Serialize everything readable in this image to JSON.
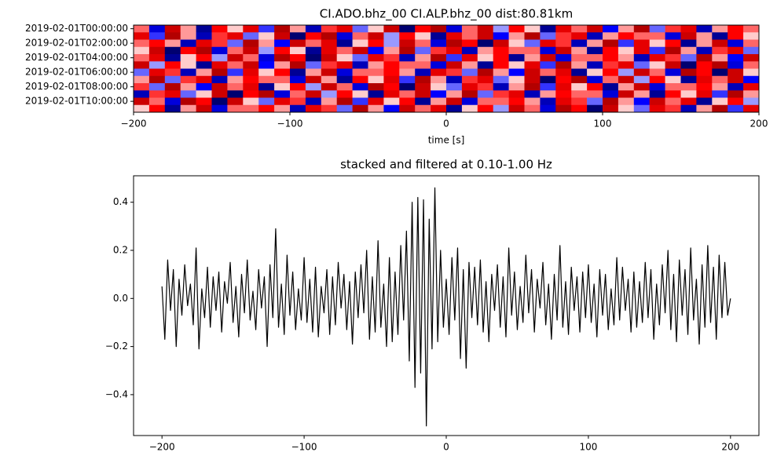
{
  "chart_data": [
    {
      "type": "heatmap",
      "title": "CI.ADO.bhz_00 CI.ALP.bhz_00  dist:80.81km",
      "xlabel": "time [s]",
      "colormap": "seismic",
      "clim": [
        -1,
        1
      ],
      "xlim": [
        -200,
        200
      ],
      "xticks": [
        {
          "value": -200,
          "label": "−200"
        },
        {
          "value": -100,
          "label": "−100"
        },
        0,
        100,
        200
      ],
      "y_categories": [
        "2019-02-01T00:00:00",
        null,
        "2019-02-01T02:00:00",
        null,
        "2019-02-01T04:00:00",
        null,
        "2019-02-01T06:00:00",
        null,
        "2019-02-01T08:00:00",
        null,
        "2019-02-01T10:00:00",
        null
      ],
      "matrix": [
        [
          0.3,
          -0.6,
          0.7,
          0.2,
          -0.8,
          0.5,
          0.1,
          0.6,
          -0.4,
          0.8,
          0.2,
          -0.7,
          0.4,
          0.6,
          -0.3,
          0.1,
          0.7,
          -0.9,
          0.5,
          0.8,
          -0.6,
          0.3,
          0.7,
          -0.2,
          0.5,
          0.1,
          -0.8,
          0.6,
          0.3,
          0.7,
          -0.5,
          0.2,
          0.8,
          -0.3,
          0.4,
          0.6,
          -0.7,
          0.2,
          0.5,
          0.3
        ],
        [
          0.6,
          -0.4,
          0.8,
          0.2,
          -0.7,
          0.4,
          0.6,
          -0.3,
          0.1,
          0.7,
          -0.9,
          0.5,
          0.8,
          -0.6,
          0.3,
          0.7,
          -0.2,
          0.5,
          0.1,
          -0.8,
          0.6,
          0.3,
          0.7,
          -0.5,
          0.2,
          0.8,
          -0.3,
          0.4,
          0.6,
          -0.7,
          0.2,
          0.5,
          0.3,
          0.3,
          -0.6,
          0.7,
          0.2,
          -0.8,
          0.5,
          0.1
        ],
        [
          0.3,
          0.5,
          0.2,
          -0.7,
          0.6,
          0.4,
          -0.3,
          0.8,
          0.2,
          -0.5,
          0.7,
          0.3,
          0.6,
          -0.8,
          0.1,
          0.5,
          -0.2,
          0.7,
          0.3,
          -0.6,
          0.8,
          0.5,
          -0.9,
          0.7,
          0.1,
          -0.3,
          0.6,
          0.4,
          -0.7,
          0.2,
          0.8,
          -0.4,
          0.6,
          0.1,
          0.5,
          -0.8,
          0.2,
          0.7,
          -0.6,
          0.3
        ],
        [
          0.1,
          0.7,
          -0.9,
          0.5,
          0.8,
          -0.6,
          0.3,
          0.7,
          -0.2,
          0.5,
          0.1,
          -0.8,
          0.6,
          0.3,
          0.7,
          -0.5,
          0.2,
          0.8,
          -0.3,
          0.4,
          0.6,
          -0.7,
          0.2,
          0.5,
          0.3,
          0.3,
          -0.6,
          0.7,
          0.2,
          -0.8,
          0.5,
          0.1,
          0.6,
          -0.4,
          0.8,
          0.2,
          -0.7,
          0.4,
          0.6,
          -0.3
        ],
        [
          0.3,
          0.6,
          -0.8,
          0.1,
          0.5,
          -0.2,
          0.7,
          0.3,
          -0.6,
          0.8,
          0.5,
          -0.9,
          0.7,
          0.1,
          -0.3,
          0.6,
          0.4,
          -0.7,
          0.2,
          0.8,
          -0.4,
          0.6,
          0.1,
          0.5,
          -0.8,
          0.2,
          0.7,
          -0.6,
          0.3,
          0.3,
          0.5,
          0.2,
          -0.7,
          0.6,
          0.4,
          -0.3,
          0.8,
          0.2,
          -0.5,
          0.7
        ],
        [
          0.7,
          -0.2,
          0.5,
          0.1,
          -0.8,
          0.6,
          0.3,
          0.7,
          -0.5,
          0.2,
          0.8,
          -0.3,
          0.4,
          0.6,
          -0.7,
          0.2,
          0.5,
          0.3,
          0.3,
          -0.6,
          0.7,
          0.2,
          -0.8,
          0.5,
          0.1,
          0.6,
          -0.4,
          0.8,
          0.2,
          -0.7,
          0.4,
          0.6,
          -0.3,
          0.1,
          0.7,
          -0.9,
          0.5,
          0.8,
          -0.6,
          0.3
        ],
        [
          -0.3,
          0.6,
          0.4,
          -0.7,
          0.2,
          0.8,
          -0.4,
          0.6,
          0.1,
          0.5,
          -0.8,
          0.2,
          0.7,
          -0.6,
          0.3,
          0.3,
          0.5,
          0.2,
          -0.7,
          0.6,
          0.4,
          -0.3,
          0.8,
          0.2,
          -0.5,
          0.7,
          0.3,
          0.6,
          -0.8,
          0.1,
          0.5,
          -0.2,
          0.7,
          0.3,
          -0.6,
          0.8,
          0.5,
          -0.9,
          0.7,
          0.1
        ],
        [
          0.2,
          0.8,
          -0.3,
          0.4,
          0.6,
          -0.7,
          0.2,
          0.5,
          0.3,
          0.3,
          -0.6,
          0.7,
          0.2,
          -0.8,
          0.5,
          0.1,
          0.6,
          -0.4,
          0.8,
          0.2,
          -0.7,
          0.4,
          0.6,
          -0.3,
          0.1,
          0.7,
          -0.9,
          0.5,
          0.8,
          -0.6,
          0.3,
          0.7,
          -0.2,
          0.5,
          0.1,
          -0.8,
          0.6,
          0.3,
          0.7,
          -0.5
        ],
        [
          0.4,
          -0.3,
          0.8,
          0.2,
          -0.5,
          0.7,
          0.3,
          0.6,
          -0.8,
          0.1,
          0.5,
          -0.2,
          0.7,
          0.3,
          -0.6,
          0.8,
          0.5,
          -0.9,
          0.7,
          0.1,
          -0.3,
          0.6,
          0.4,
          -0.7,
          0.2,
          0.8,
          -0.4,
          0.6,
          0.1,
          0.5,
          -0.8,
          0.2,
          0.7,
          -0.6,
          0.3,
          0.3,
          0.5,
          0.2,
          -0.7,
          0.6
        ],
        [
          -0.7,
          0.4,
          0.6,
          -0.3,
          0.1,
          0.7,
          -0.9,
          0.5,
          0.8,
          -0.6,
          0.3,
          0.7,
          -0.2,
          0.5,
          0.1,
          -0.8,
          0.6,
          0.3,
          0.7,
          -0.5,
          0.2,
          0.8,
          -0.3,
          0.4,
          0.6,
          -0.7,
          0.2,
          0.5,
          0.3,
          0.3,
          -0.6,
          0.7,
          0.2,
          -0.8,
          0.5,
          0.1,
          0.6,
          -0.4,
          0.8,
          0.2
        ],
        [
          0.7,
          0.3,
          -0.6,
          0.8,
          0.5,
          -0.9,
          0.7,
          0.1,
          -0.3,
          0.6,
          0.4,
          -0.7,
          0.2,
          0.8,
          -0.4,
          0.6,
          0.1,
          0.5,
          -0.8,
          0.2,
          0.7,
          -0.6,
          0.3,
          0.3,
          0.5,
          0.2,
          -0.7,
          0.6,
          0.4,
          -0.3,
          0.8,
          0.2,
          -0.5,
          0.7,
          0.3,
          0.6,
          -0.8,
          0.1,
          0.5,
          -0.2
        ],
        [
          0.1,
          0.5,
          -0.8,
          0.2,
          0.7,
          -0.6,
          0.3,
          0.3,
          0.5,
          0.2,
          -0.7,
          0.6,
          0.4,
          -0.3,
          0.8,
          0.2,
          -0.5,
          0.7,
          0.3,
          0.6,
          -0.8,
          0.1,
          0.5,
          -0.2,
          0.7,
          0.3,
          -0.6,
          0.8,
          0.5,
          -0.9,
          0.7,
          0.1,
          -0.3,
          0.6,
          0.4,
          -0.7,
          0.2,
          0.8,
          -0.4,
          0.6
        ]
      ]
    },
    {
      "type": "line",
      "title": "stacked and filtered at 0.10-1.00 Hz",
      "color": "#000000",
      "xlim": [
        -220,
        220
      ],
      "ylim": [
        -0.57,
        0.51
      ],
      "xticks": [
        {
          "value": -200,
          "label": "−200"
        },
        {
          "value": -100,
          "label": "−100"
        },
        0,
        100,
        200
      ],
      "yticks": [
        {
          "value": -0.4,
          "label": "−0.4"
        },
        {
          "value": -0.2,
          "label": "−0.2"
        },
        {
          "value": 0,
          "label": "0.0"
        },
        0.2,
        0.4
      ],
      "x": [
        -200,
        -198,
        -196,
        -194,
        -192,
        -190,
        -188,
        -186,
        -184,
        -182,
        -180,
        -178,
        -176,
        -174,
        -172,
        -170,
        -168,
        -166,
        -164,
        -162,
        -160,
        -158,
        -156,
        -154,
        -152,
        -150,
        -148,
        -146,
        -144,
        -142,
        -140,
        -138,
        -136,
        -134,
        -132,
        -130,
        -128,
        -126,
        -124,
        -122,
        -120,
        -118,
        -116,
        -114,
        -112,
        -110,
        -108,
        -106,
        -104,
        -102,
        -100,
        -98,
        -96,
        -94,
        -92,
        -90,
        -88,
        -86,
        -84,
        -82,
        -80,
        -78,
        -76,
        -74,
        -72,
        -70,
        -68,
        -66,
        -64,
        -62,
        -60,
        -58,
        -56,
        -54,
        -52,
        -50,
        -48,
        -46,
        -44,
        -42,
        -40,
        -38,
        -36,
        -34,
        -32,
        -30,
        -28,
        -26,
        -24,
        -22,
        -20,
        -18,
        -16,
        -14,
        -12,
        -10,
        -8,
        -6,
        -4,
        -2,
        0,
        2,
        4,
        6,
        8,
        10,
        12,
        14,
        16,
        18,
        20,
        22,
        24,
        26,
        28,
        30,
        32,
        34,
        36,
        38,
        40,
        42,
        44,
        46,
        48,
        50,
        52,
        54,
        56,
        58,
        60,
        62,
        64,
        66,
        68,
        70,
        72,
        74,
        76,
        78,
        80,
        82,
        84,
        86,
        88,
        90,
        92,
        94,
        96,
        98,
        100,
        102,
        104,
        106,
        108,
        110,
        112,
        114,
        116,
        118,
        120,
        122,
        124,
        126,
        128,
        130,
        132,
        134,
        136,
        138,
        140,
        142,
        144,
        146,
        148,
        150,
        152,
        154,
        156,
        158,
        160,
        162,
        164,
        166,
        168,
        170,
        172,
        174,
        176,
        178,
        180,
        182,
        184,
        186,
        188,
        190,
        192,
        194,
        196,
        198,
        200
      ],
      "values": [
        0.05,
        -0.17,
        0.16,
        -0.05,
        0.12,
        -0.2,
        0.08,
        -0.07,
        0.14,
        -0.03,
        0.06,
        -0.11,
        0.21,
        -0.21,
        0.04,
        -0.08,
        0.13,
        -0.12,
        0.09,
        -0.05,
        0.11,
        -0.14,
        0.07,
        -0.02,
        0.15,
        -0.1,
        0.05,
        -0.16,
        0.1,
        -0.06,
        0.16,
        -0.09,
        0.03,
        -0.13,
        0.12,
        -0.04,
        0.09,
        -0.2,
        0.14,
        -0.08,
        0.29,
        -0.12,
        0.06,
        -0.15,
        0.18,
        -0.07,
        0.11,
        -0.13,
        0.04,
        -0.09,
        0.17,
        -0.1,
        0.08,
        -0.14,
        0.13,
        -0.16,
        0.05,
        -0.06,
        0.12,
        -0.15,
        0.09,
        -0.11,
        0.15,
        -0.04,
        0.1,
        -0.13,
        0.07,
        -0.19,
        0.11,
        -0.08,
        0.14,
        -0.06,
        0.2,
        -0.17,
        0.09,
        -0.14,
        0.24,
        -0.12,
        0.06,
        -0.2,
        0.17,
        -0.18,
        0.11,
        -0.15,
        0.22,
        -0.09,
        0.28,
        -0.26,
        0.4,
        -0.37,
        0.42,
        -0.31,
        0.41,
        -0.53,
        0.33,
        -0.21,
        0.46,
        -0.18,
        0.2,
        -0.12,
        0.08,
        -0.15,
        0.17,
        -0.09,
        0.21,
        -0.25,
        0.12,
        -0.29,
        0.15,
        -0.08,
        0.13,
        -0.11,
        0.16,
        -0.14,
        0.07,
        -0.18,
        0.1,
        -0.05,
        0.14,
        -0.12,
        0.09,
        -0.16,
        0.21,
        -0.07,
        0.11,
        -0.13,
        0.05,
        -0.1,
        0.18,
        -0.06,
        0.12,
        -0.14,
        0.08,
        -0.04,
        0.15,
        -0.11,
        0.06,
        -0.17,
        0.1,
        -0.09,
        0.22,
        -0.12,
        0.07,
        -0.15,
        0.13,
        -0.05,
        0.09,
        -0.14,
        0.11,
        -0.08,
        0.14,
        -0.1,
        0.06,
        -0.16,
        0.12,
        -0.07,
        0.1,
        -0.13,
        0.04,
        -0.11,
        0.17,
        -0.09,
        0.13,
        -0.05,
        0.08,
        -0.14,
        0.11,
        -0.12,
        0.07,
        -0.1,
        0.15,
        -0.08,
        0.12,
        -0.17,
        0.06,
        -0.11,
        0.14,
        -0.06,
        0.2,
        -0.13,
        0.1,
        -0.18,
        0.16,
        -0.07,
        0.12,
        -0.15,
        0.21,
        -0.09,
        0.08,
        -0.19,
        0.14,
        -0.12,
        0.22,
        -0.1,
        0.13,
        -0.17,
        0.18,
        -0.08,
        0.15,
        -0.07,
        0
      ]
    }
  ]
}
